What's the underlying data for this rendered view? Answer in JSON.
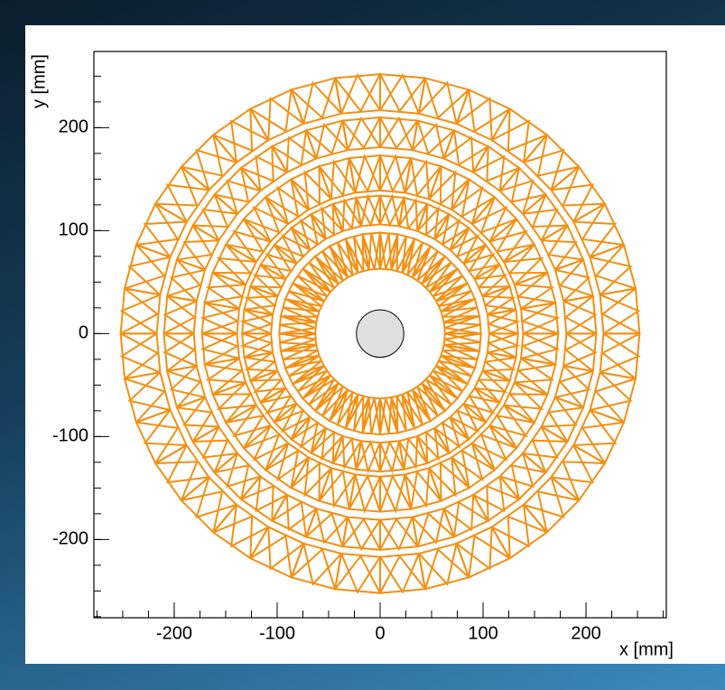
{
  "chart_data": {
    "type": "geometry",
    "x_label": "x [mm]",
    "y_label": "y [mm]",
    "xlim": [
      -278,
      278
    ],
    "ylim": [
      -276,
      274
    ],
    "xticks": [
      -200,
      -100,
      0,
      100,
      200
    ],
    "yticks": [
      -200,
      -100,
      0,
      100,
      200
    ],
    "minor_per_major": 4,
    "color": "#f39014",
    "segments": 36,
    "layers": [
      {
        "r_in": 63,
        "r_out": 98
      },
      {
        "r_in": 106,
        "r_out": 134
      },
      {
        "r_in": 139,
        "r_out": 173
      },
      {
        "r_in": 181,
        "r_out": 210
      },
      {
        "r_in": 217,
        "r_out": 252
      }
    ],
    "beam_pipe_radius": 23,
    "beam_pipe_color": "#e0e0e0"
  }
}
